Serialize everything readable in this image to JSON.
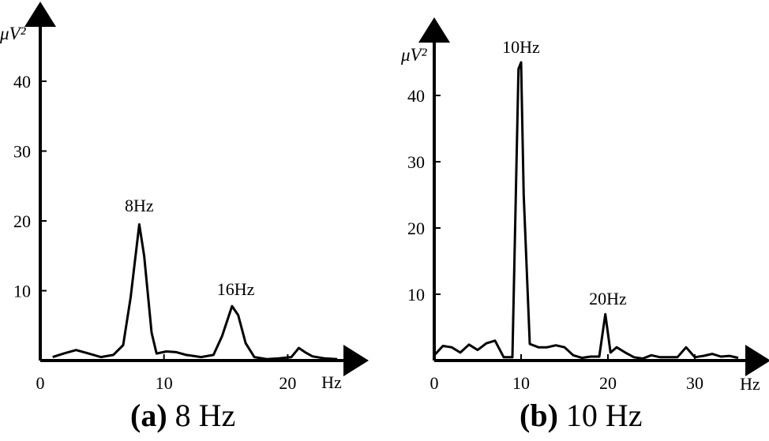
{
  "chart_data": [
    {
      "type": "line",
      "caption_letter": "(a)",
      "caption_text": "8 Hz",
      "xlabel": "Hz",
      "ylabel": "μV²",
      "xlim": [
        0,
        25
      ],
      "ylim": [
        0,
        50
      ],
      "x_ticks": [
        0,
        10,
        20
      ],
      "y_ticks": [
        10,
        20,
        30,
        40
      ],
      "annotations": [
        {
          "text": "8Hz",
          "x": 8,
          "y": 20
        },
        {
          "text": "16Hz",
          "x": 15.8,
          "y": 8
        }
      ],
      "series": [
        {
          "x": [
            1.0,
            1.9,
            2.9,
            3.9,
            4.9,
            5.9,
            6.7,
            7.3,
            8.0,
            8.4,
            9.0,
            9.4,
            10.2,
            11.0,
            11.8,
            13.0,
            14.0,
            14.7,
            15.5,
            16.0,
            16.6,
            17.3,
            18.3,
            19.3,
            20.3,
            20.9,
            21.4,
            22.0,
            23.0,
            24.0
          ],
          "y": [
            0.5,
            1.0,
            1.5,
            1.0,
            0.5,
            0.8,
            2.2,
            9.0,
            19.5,
            15.0,
            4.0,
            1.0,
            1.3,
            1.2,
            0.8,
            0.5,
            0.8,
            3.5,
            7.8,
            6.5,
            2.5,
            0.5,
            0.2,
            0.3,
            0.5,
            1.8,
            1.2,
            0.6,
            0.3,
            0.2
          ]
        }
      ]
    },
    {
      "type": "line",
      "caption_letter": "(b)",
      "caption_text": "10 Hz",
      "xlabel": "Hz",
      "ylabel": "μV²",
      "xlim": [
        0,
        36
      ],
      "ylim": [
        0,
        47
      ],
      "x_ticks": [
        0,
        10,
        20,
        30
      ],
      "y_ticks": [
        10,
        20,
        30,
        40
      ],
      "annotations": [
        {
          "text": "10Hz",
          "x": 10,
          "y": 45
        },
        {
          "text": "20Hz",
          "x": 20,
          "y": 7
        }
      ],
      "series": [
        {
          "x": [
            0,
            1,
            2,
            3,
            4,
            5,
            6,
            7,
            8,
            9,
            9.7,
            10,
            10.3,
            11,
            12,
            13,
            14,
            15,
            16,
            17,
            18,
            19,
            19.7,
            20.3,
            21,
            22,
            23,
            24,
            25,
            26,
            27,
            28,
            29,
            30,
            31,
            32,
            33,
            34,
            35
          ],
          "y": [
            0.8,
            2.2,
            2.0,
            1.2,
            2.4,
            1.6,
            2.6,
            3.0,
            0.5,
            0.5,
            44.0,
            45.0,
            25.0,
            2.5,
            2.0,
            2.0,
            2.3,
            2.0,
            0.8,
            0.4,
            0.6,
            0.6,
            7.0,
            1.2,
            2.0,
            1.2,
            0.5,
            0.3,
            0.8,
            0.5,
            0.5,
            0.5,
            2.0,
            0.5,
            0.7,
            1.0,
            0.6,
            0.7,
            0.4
          ]
        }
      ]
    }
  ]
}
